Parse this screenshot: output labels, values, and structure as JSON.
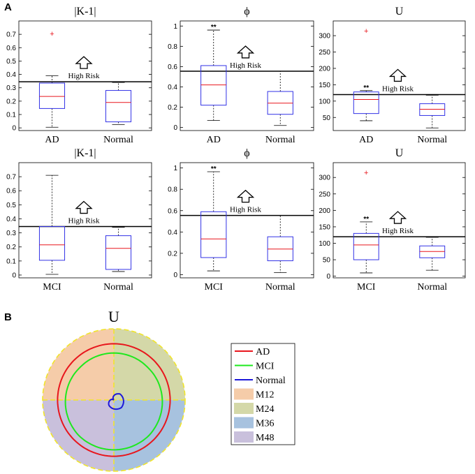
{
  "panel_labels": {
    "a": "A",
    "b": "B"
  },
  "annotations": {
    "high_risk": "High Risk"
  },
  "chart_data": [
    {
      "type": "box",
      "title": "|K-1|",
      "categories": [
        "AD",
        "Normal"
      ],
      "ylim": [
        -0.02,
        0.8
      ],
      "yticks": [
        0,
        0.1,
        0.2,
        0.3,
        0.4,
        0.5,
        0.6,
        0.7
      ],
      "threshold": 0.345,
      "boxes": [
        {
          "category": "AD",
          "whisker_low": 0.005,
          "q1": 0.145,
          "median": 0.235,
          "q3": 0.335,
          "whisker_high": 0.39,
          "outliers": [
            0.705
          ],
          "significance": ""
        },
        {
          "category": "Normal",
          "whisker_low": 0.025,
          "q1": 0.045,
          "median": 0.19,
          "q3": 0.28,
          "whisker_high": 0.34,
          "outliers": [],
          "significance": ""
        }
      ]
    },
    {
      "type": "box",
      "title": "ϕ",
      "categories": [
        "AD",
        "Normal"
      ],
      "ylim": [
        -0.03,
        1.05
      ],
      "yticks": [
        0,
        0.2,
        0.4,
        0.6,
        0.8,
        1
      ],
      "threshold": 0.555,
      "boxes": [
        {
          "category": "AD",
          "whisker_low": 0.07,
          "q1": 0.22,
          "median": 0.42,
          "q3": 0.61,
          "whisker_high": 0.96,
          "outliers": [],
          "significance": "**"
        },
        {
          "category": "Normal",
          "whisker_low": 0.02,
          "q1": 0.13,
          "median": 0.24,
          "q3": 0.355,
          "whisker_high": 0.555,
          "outliers": [],
          "significance": ""
        }
      ]
    },
    {
      "type": "box",
      "title": "U",
      "categories": [
        "AD",
        "Normal"
      ],
      "ylim": [
        10,
        345
      ],
      "yticks": [
        50,
        100,
        150,
        200,
        250,
        300
      ],
      "threshold": 120,
      "boxes": [
        {
          "category": "AD",
          "whisker_low": 40,
          "q1": 62,
          "median": 105,
          "q3": 128,
          "whisker_high": 132,
          "outliers": [
            315
          ],
          "significance": "**"
        },
        {
          "category": "Normal",
          "whisker_low": 18,
          "q1": 56,
          "median": 75,
          "q3": 92,
          "whisker_high": 118,
          "outliers": [],
          "significance": ""
        }
      ]
    },
    {
      "type": "box",
      "title": "|K-1|",
      "categories": [
        "MCI",
        "Normal"
      ],
      "ylim": [
        -0.02,
        0.8
      ],
      "yticks": [
        0,
        0.1,
        0.2,
        0.3,
        0.4,
        0.5,
        0.6,
        0.7
      ],
      "threshold": 0.345,
      "boxes": [
        {
          "category": "MCI",
          "whisker_low": 0.005,
          "q1": 0.105,
          "median": 0.215,
          "q3": 0.345,
          "whisker_high": 0.71,
          "outliers": [],
          "significance": ""
        },
        {
          "category": "Normal",
          "whisker_low": 0.025,
          "q1": 0.04,
          "median": 0.19,
          "q3": 0.28,
          "whisker_high": 0.34,
          "outliers": [],
          "significance": ""
        }
      ]
    },
    {
      "type": "box",
      "title": "ϕ",
      "categories": [
        "MCI",
        "Normal"
      ],
      "ylim": [
        -0.03,
        1.05
      ],
      "yticks": [
        0,
        0.2,
        0.4,
        0.6,
        0.8,
        1
      ],
      "threshold": 0.555,
      "boxes": [
        {
          "category": "MCI",
          "whisker_low": 0.035,
          "q1": 0.16,
          "median": 0.335,
          "q3": 0.59,
          "whisker_high": 0.965,
          "outliers": [],
          "significance": "**"
        },
        {
          "category": "Normal",
          "whisker_low": 0.02,
          "q1": 0.13,
          "median": 0.24,
          "q3": 0.355,
          "whisker_high": 0.555,
          "outliers": [],
          "significance": ""
        }
      ]
    },
    {
      "type": "box",
      "title": "U",
      "categories": [
        "MCI",
        "Normal"
      ],
      "ylim": [
        -5,
        345
      ],
      "yticks": [
        0,
        50,
        100,
        150,
        200,
        250,
        300
      ],
      "threshold": 120,
      "boxes": [
        {
          "category": "MCI",
          "whisker_low": 10,
          "q1": 50,
          "median": 95,
          "q3": 130,
          "whisker_high": 165,
          "outliers": [
            315
          ],
          "significance": "**"
        },
        {
          "category": "Normal",
          "whisker_low": 18,
          "q1": 56,
          "median": 75,
          "q3": 92,
          "whisker_high": 118,
          "outliers": [],
          "significance": ""
        }
      ]
    },
    {
      "type": "polar",
      "title": "U",
      "quadrants": [
        {
          "name": "M12",
          "color": "#f5cca9"
        },
        {
          "name": "M24",
          "color": "#d4d8a8"
        },
        {
          "name": "M36",
          "color": "#a7c2df"
        },
        {
          "name": "M48",
          "color": "#c9c0dc"
        }
      ],
      "series": [
        {
          "name": "AD",
          "color": "#e8161d",
          "profile": [
            0.79,
            0.79,
            0.79,
            0.79
          ]
        },
        {
          "name": "MCI",
          "color": "#1ee81e",
          "profile": [
            0.66,
            0.66,
            0.7,
            0.7
          ]
        },
        {
          "name": "Normal",
          "color": "#1c18d9",
          "profile": [
            0.0,
            0.12,
            0.15,
            0.1
          ]
        }
      ],
      "legend": [
        "AD",
        "MCI",
        "Normal",
        "M12",
        "M24",
        "M36",
        "M48"
      ]
    }
  ]
}
